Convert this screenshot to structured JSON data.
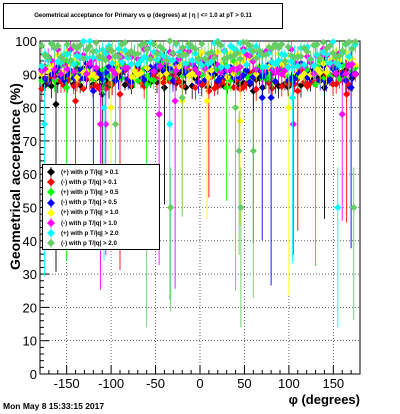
{
  "chart_data": {
    "type": "scatter",
    "title": "Geometrical acceptance for Primary vs φ (degrees) at | η | <= 1.0 at pT > 0.11",
    "xlabel": "φ (degrees)",
    "ylabel": "Geometrical acceptance (%)",
    "xlim": [
      -180,
      180
    ],
    "ylim": [
      0,
      100
    ],
    "xticks": [
      -150,
      -100,
      -50,
      0,
      50,
      100,
      150
    ],
    "yticks": [
      0,
      10,
      20,
      30,
      40,
      50,
      60,
      70,
      80,
      90,
      100
    ],
    "grid": true,
    "legend_position": "left-middle",
    "series": [
      {
        "name": "(+) with p T/|q| > 0.1",
        "color": "#000000",
        "base": 89,
        "spread": 3,
        "dips": [
          [
            -162,
            81
          ],
          [
            -40,
            86
          ],
          [
            -110,
            84
          ],
          [
            60,
            85
          ],
          [
            140,
            86
          ]
        ]
      },
      {
        "name": "(-) with p T/|q| > 0.1",
        "color": "#ff0000",
        "base": 88.5,
        "spread": 3,
        "dips": [
          [
            -140,
            82
          ],
          [
            -90,
            84
          ],
          [
            10,
            85
          ],
          [
            110,
            85
          ],
          [
            165,
            84
          ]
        ]
      },
      {
        "name": "(+) with p T/|q| > 0.5",
        "color": "#00ff00",
        "base": 91,
        "spread": 3,
        "dips": [
          [
            -150,
            86
          ],
          [
            -60,
            87
          ],
          [
            30,
            86
          ],
          [
            130,
            87
          ]
        ]
      },
      {
        "name": "(-) with p T/|q| > 0.5",
        "color": "#0000ff",
        "base": 90.5,
        "spread": 3,
        "dips": [
          [
            -120,
            85
          ],
          [
            70,
            83
          ],
          [
            80,
            83
          ],
          [
            170,
            86
          ]
        ]
      },
      {
        "name": "(+) with p T/|q| > 1.0",
        "color": "#ffff00",
        "base": 93,
        "spread": 4,
        "dips": [
          [
            -100,
            80
          ],
          [
            -20,
            82
          ],
          [
            8,
            82
          ],
          [
            45,
            76
          ],
          [
            100,
            80
          ]
        ]
      },
      {
        "name": "(-) with p T/|q| > 1.0",
        "color": "#ff00ff",
        "base": 94,
        "spread": 4,
        "dips": [
          [
            -106,
            75
          ],
          [
            -112,
            75
          ],
          [
            -46,
            78
          ],
          [
            -28,
            82
          ],
          [
            105,
            75
          ],
          [
            160,
            78
          ]
        ]
      },
      {
        "name": "(+) with p T/|q| > 2.0",
        "color": "#00ffff",
        "base": 96,
        "spread": 4,
        "dips": [
          [
            -175,
            75
          ],
          [
            -108,
            80
          ],
          [
            -34,
            75
          ],
          [
            104,
            83
          ],
          [
            155,
            50
          ]
        ]
      },
      {
        "name": "(-) with p T/|q| > 2.0",
        "color": "#66cc66",
        "base": 97,
        "spread": 3,
        "dips": [
          [
            -95,
            75
          ],
          [
            -60,
            50
          ],
          [
            -33,
            50
          ],
          [
            -20,
            83
          ],
          [
            40,
            80
          ],
          [
            44,
            67
          ],
          [
            46,
            50
          ],
          [
            60,
            67
          ],
          [
            173,
            50
          ]
        ]
      }
    ]
  },
  "timestamp": "Mon May  8 15:33:15 2017"
}
